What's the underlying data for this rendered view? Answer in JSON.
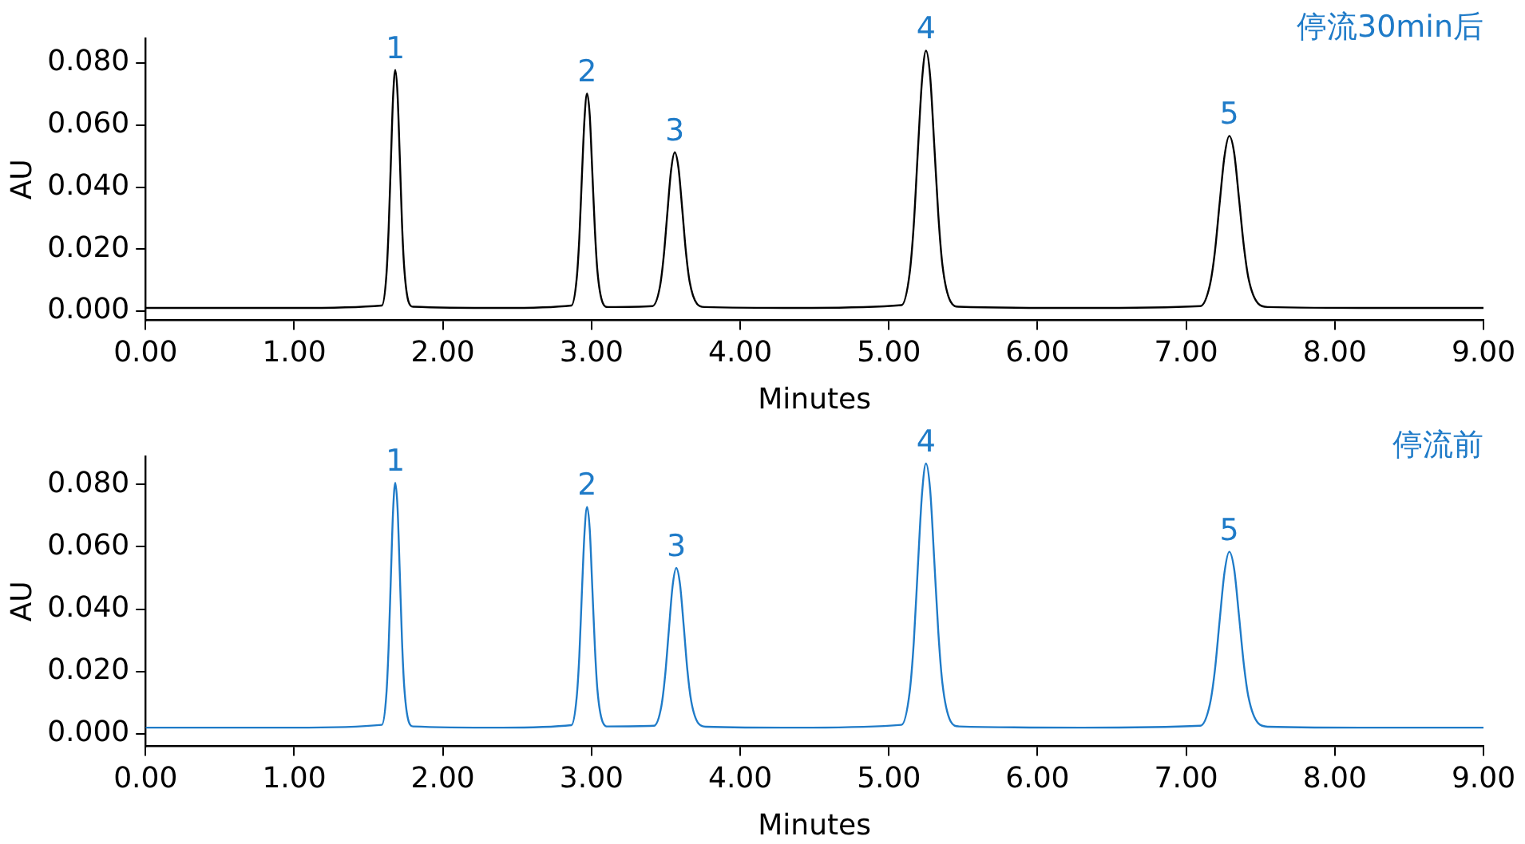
{
  "chart_data": [
    {
      "type": "line",
      "xlabel": "Minutes",
      "ylabel": "AU",
      "xlim": [
        0,
        9
      ],
      "ylim": [
        -0.003,
        0.088
      ],
      "xticks": [
        {
          "value": 0,
          "label": "0.00"
        },
        {
          "value": 1,
          "label": "1.00"
        },
        {
          "value": 2,
          "label": "2.00"
        },
        {
          "value": 3,
          "label": "3.00"
        },
        {
          "value": 4,
          "label": "4.00"
        },
        {
          "value": 5,
          "label": "5.00"
        },
        {
          "value": 6,
          "label": "6.00"
        },
        {
          "value": 7,
          "label": "7.00"
        },
        {
          "value": 8,
          "label": "8.00"
        },
        {
          "value": 9,
          "label": "9.00"
        }
      ],
      "yticks": [
        {
          "value": 0,
          "label": "0.000"
        },
        {
          "value": 0.02,
          "label": "0.020"
        },
        {
          "value": 0.04,
          "label": "0.040"
        },
        {
          "value": 0.06,
          "label": "0.060"
        },
        {
          "value": 0.08,
          "label": "0.080"
        }
      ],
      "grid": false,
      "marker": "none",
      "series": [
        {
          "color": "#000000",
          "x": [
            0,
            1.0,
            1.59,
            1.62,
            1.635,
            1.65,
            1.665,
            1.68,
            1.695,
            1.71,
            1.725,
            1.74,
            1.77,
            1.8,
            2.4,
            2.865,
            2.9,
            2.918,
            2.935,
            2.953,
            2.97,
            2.988,
            3.005,
            3.023,
            3.04,
            3.075,
            3.11,
            3.41,
            3.46,
            3.485,
            3.51,
            3.535,
            3.56,
            3.585,
            3.61,
            3.635,
            3.66,
            3.71,
            3.76,
            4.4,
            5.085,
            5.14,
            5.168,
            5.195,
            5.223,
            5.25,
            5.278,
            5.305,
            5.333,
            5.36,
            5.415,
            5.47,
            6.3,
            7.095,
            7.16,
            7.193,
            7.225,
            7.258,
            7.29,
            7.323,
            7.355,
            7.388,
            7.42,
            7.485,
            7.55,
            8.3,
            9.0
          ],
          "values": [
            0.001,
            0.001,
            0.0018,
            0.0114,
            0.026,
            0.0476,
            0.0688,
            0.0778,
            0.0701,
            0.0502,
            0.0286,
            0.0141,
            0.0029,
            0.0014,
            0.001,
            0.0018,
            0.0103,
            0.0235,
            0.043,
            0.0621,
            0.0702,
            0.0633,
            0.0453,
            0.0259,
            0.0128,
            0.0027,
            0.0013,
            0.0016,
            0.0078,
            0.0173,
            0.0315,
            0.0453,
            0.0512,
            0.0462,
            0.0331,
            0.0191,
            0.0095,
            0.0023,
            0.0013,
            0.001,
            0.0019,
            0.0122,
            0.028,
            0.0514,
            0.0743,
            0.084,
            0.0757,
            0.0541,
            0.0309,
            0.0151,
            0.0031,
            0.0014,
            0.001,
            0.0016,
            0.0085,
            0.019,
            0.0347,
            0.05,
            0.0565,
            0.051,
            0.0365,
            0.021,
            0.0104,
            0.0024,
            0.0013,
            0.001,
            0.001
          ]
        }
      ],
      "annotations": [
        {
          "text": "1",
          "x": 1.68,
          "y": 0.0778
        },
        {
          "text": "2",
          "x": 2.97,
          "y": 0.0702
        },
        {
          "text": "3",
          "x": 3.56,
          "y": 0.0512
        },
        {
          "text": "4",
          "x": 5.25,
          "y": 0.084
        },
        {
          "text": "5",
          "x": 7.29,
          "y": 0.0565
        },
        "停流30min后"
      ]
    },
    {
      "type": "line",
      "xlabel": "Minutes",
      "ylabel": "AU",
      "xlim": [
        0,
        9
      ],
      "ylim": [
        -0.004,
        0.089
      ],
      "xticks": [
        {
          "value": 0,
          "label": "0.00"
        },
        {
          "value": 1,
          "label": "1.00"
        },
        {
          "value": 2,
          "label": "2.00"
        },
        {
          "value": 3,
          "label": "3.00"
        },
        {
          "value": 4,
          "label": "4.00"
        },
        {
          "value": 5,
          "label": "5.00"
        },
        {
          "value": 6,
          "label": "6.00"
        },
        {
          "value": 7,
          "label": "7.00"
        },
        {
          "value": 8,
          "label": "8.00"
        },
        {
          "value": 9,
          "label": "9.00"
        }
      ],
      "yticks": [
        {
          "value": 0,
          "label": "0.000"
        },
        {
          "value": 0.02,
          "label": "0.020"
        },
        {
          "value": 0.04,
          "label": "0.040"
        },
        {
          "value": 0.06,
          "label": "0.060"
        },
        {
          "value": 0.08,
          "label": "0.080"
        }
      ],
      "grid": false,
      "marker": "none",
      "series": [
        {
          "color": "#1f7bc8",
          "x": [
            0,
            1.0,
            1.59,
            1.62,
            1.635,
            1.65,
            1.665,
            1.68,
            1.695,
            1.71,
            1.725,
            1.74,
            1.77,
            1.8,
            2.4,
            2.865,
            2.9,
            2.918,
            2.935,
            2.953,
            2.97,
            2.988,
            3.005,
            3.023,
            3.04,
            3.075,
            3.11,
            3.42,
            3.47,
            3.495,
            3.52,
            3.545,
            3.57,
            3.595,
            3.62,
            3.645,
            3.67,
            3.72,
            3.77,
            4.4,
            5.085,
            5.14,
            5.168,
            5.195,
            5.223,
            5.25,
            5.278,
            5.305,
            5.333,
            5.36,
            5.415,
            5.47,
            6.3,
            7.095,
            7.16,
            7.193,
            7.225,
            7.258,
            7.29,
            7.323,
            7.355,
            7.388,
            7.42,
            7.485,
            7.55,
            8.3,
            9.0
          ],
          "values": [
            0.002,
            0.002,
            0.0029,
            0.0126,
            0.0275,
            0.0497,
            0.0713,
            0.0805,
            0.0727,
            0.0522,
            0.0303,
            0.0153,
            0.004,
            0.0024,
            0.002,
            0.0028,
            0.0116,
            0.025,
            0.045,
            0.0645,
            0.0728,
            0.0657,
            0.0473,
            0.0275,
            0.014,
            0.0038,
            0.0024,
            0.0026,
            0.0089,
            0.0186,
            0.0331,
            0.0472,
            0.0532,
            0.0481,
            0.0348,
            0.0204,
            0.0107,
            0.0033,
            0.0023,
            0.002,
            0.0029,
            0.0134,
            0.0295,
            0.0534,
            0.0768,
            0.0867,
            0.0782,
            0.0562,
            0.0325,
            0.0164,
            0.0041,
            0.0024,
            0.002,
            0.0026,
            0.0096,
            0.0203,
            0.0362,
            0.0518,
            0.0584,
            0.0528,
            0.0381,
            0.0223,
            0.0116,
            0.0034,
            0.0023,
            0.002,
            0.002
          ]
        }
      ],
      "annotations": [
        {
          "text": "1",
          "x": 1.68,
          "y": 0.0805
        },
        {
          "text": "2",
          "x": 2.97,
          "y": 0.0728
        },
        {
          "text": "3",
          "x": 3.57,
          "y": 0.0532
        },
        {
          "text": "4",
          "x": 5.25,
          "y": 0.0867
        },
        {
          "text": "5",
          "x": 7.29,
          "y": 0.0584
        },
        "停流前"
      ]
    }
  ]
}
